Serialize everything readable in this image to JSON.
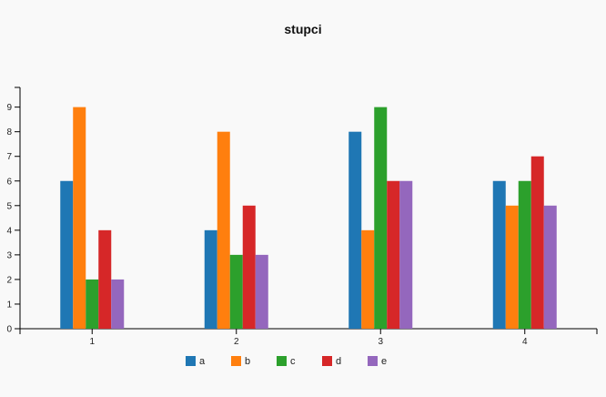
{
  "chart_data": {
    "type": "bar",
    "title": "stupci",
    "xlabel": "",
    "ylabel": "",
    "categories": [
      "1",
      "2",
      "3",
      "4"
    ],
    "ylim": [
      0,
      9.8
    ],
    "yticks": [
      0,
      1,
      2,
      3,
      4,
      5,
      6,
      7,
      8,
      9
    ],
    "grid": false,
    "legend": "bottom",
    "series": [
      {
        "name": "a",
        "color": "#1f77b4",
        "values": [
          6,
          4,
          8,
          6
        ]
      },
      {
        "name": "b",
        "color": "#ff7f0e",
        "values": [
          9,
          8,
          4,
          5
        ]
      },
      {
        "name": "c",
        "color": "#2ca02c",
        "values": [
          2,
          3,
          9,
          6
        ]
      },
      {
        "name": "d",
        "color": "#d62728",
        "values": [
          4,
          5,
          6,
          7
        ]
      },
      {
        "name": "e",
        "color": "#9467bd",
        "values": [
          2,
          3,
          6,
          5
        ]
      }
    ]
  }
}
